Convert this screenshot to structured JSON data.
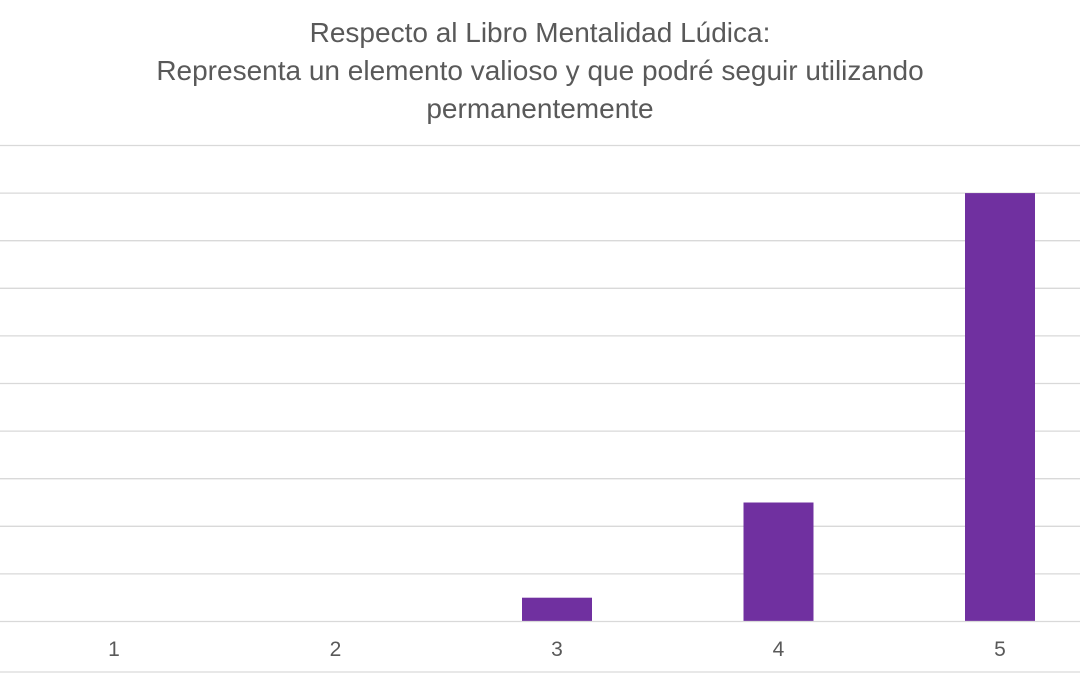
{
  "chart_data": {
    "type": "bar",
    "title_lines": [
      "Respecto al Libro Mentalidad Lúdica:",
      "Representa un elemento valioso y que podré seguir utilizando",
      "permanentemente"
    ],
    "categories": [
      "1",
      "2",
      "3",
      "4",
      "5"
    ],
    "values": [
      0,
      0,
      1,
      5,
      18
    ],
    "ylim": [
      0,
      20
    ],
    "grid": true,
    "bar_color": "#7030A0",
    "xlabel": "",
    "ylabel": ""
  }
}
